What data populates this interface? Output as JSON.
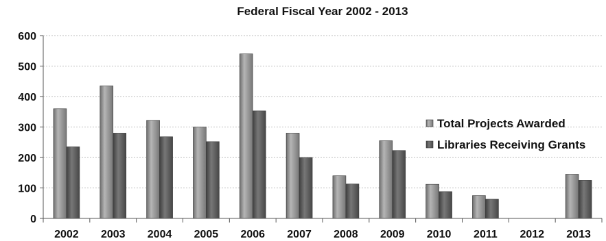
{
  "chart_data": {
    "type": "bar",
    "title": "Federal Fiscal Year 2002 - 2013",
    "xlabel": "",
    "ylabel": "",
    "categories": [
      "2002",
      "2003",
      "2004",
      "2005",
      "2006",
      "2007",
      "2008",
      "2009",
      "2010",
      "2011",
      "2012",
      "2013"
    ],
    "series": [
      {
        "name": "Total Projects Awarded",
        "values": [
          360,
          435,
          322,
          300,
          540,
          280,
          140,
          255,
          112,
          75,
          0,
          145
        ],
        "color": "#8c8c8c"
      },
      {
        "name": "Libraries Receiving Grants",
        "values": [
          235,
          280,
          268,
          252,
          353,
          200,
          113,
          223,
          88,
          63,
          0,
          125
        ],
        "color": "#595959"
      }
    ],
    "ylim": [
      0,
      600
    ],
    "yticks": [
      0,
      100,
      200,
      300,
      400,
      500,
      600
    ],
    "grid": true,
    "legend_position": "right"
  }
}
